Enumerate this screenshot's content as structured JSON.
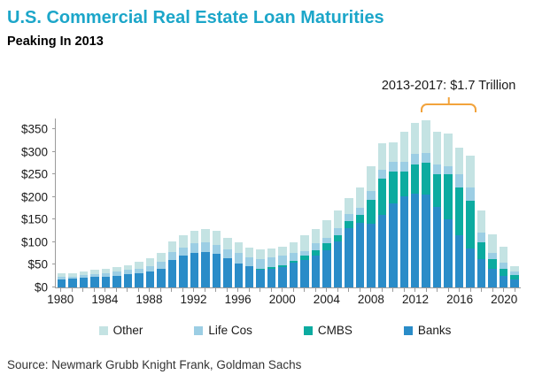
{
  "header": {
    "title": "U.S. Commercial Real Estate Loan Maturities",
    "subtitle": "Peaking In 2013"
  },
  "source": "Source: Newmark Grubb Knight Frank, Goldman Sachs",
  "colors": {
    "title": "#1ca6c9",
    "axis": "#9b9b9b",
    "bracket": "#F2A33C"
  },
  "chart_data": {
    "type": "bar",
    "stacked": true,
    "title": "U.S. Commercial Real Estate Loan Maturities",
    "subtitle": "Peaking In 2013",
    "xlabel": "",
    "ylabel": "",
    "ytick_prefix": "$",
    "yticks": [
      0,
      50,
      100,
      150,
      200,
      250,
      300,
      350
    ],
    "ymax": 374,
    "grid": false,
    "legend_position": "bottom",
    "years": [
      1980,
      1981,
      1982,
      1983,
      1984,
      1985,
      1986,
      1987,
      1988,
      1989,
      1990,
      1991,
      1992,
      1993,
      1994,
      1995,
      1996,
      1997,
      1998,
      1999,
      2000,
      2001,
      2002,
      2003,
      2004,
      2005,
      2006,
      2007,
      2008,
      2009,
      2010,
      2011,
      2012,
      2013,
      2014,
      2015,
      2016,
      2017,
      2018,
      2019,
      2020,
      2021
    ],
    "xtick_labels": [
      1980,
      1984,
      1988,
      1992,
      1996,
      2000,
      2004,
      2008,
      2012,
      2016,
      2020
    ],
    "series": [
      {
        "name": "Banks",
        "color": "#2a8cc8",
        "values": [
          18,
          19,
          21,
          23,
          24,
          26,
          29,
          31,
          35,
          42,
          60,
          70,
          77,
          79,
          75,
          65,
          52,
          47,
          39,
          42,
          46,
          54,
          60,
          70,
          82,
          102,
          131,
          142,
          141,
          160,
          186,
          202,
          208,
          206,
          179,
          150,
          115,
          86,
          63,
          41,
          26,
          18
        ]
      },
      {
        "name": "CMBS",
        "color": "#0caba0",
        "values": [
          0,
          0,
          0,
          0,
          0,
          0,
          0,
          0,
          0,
          0,
          0,
          0,
          0,
          0,
          0,
          0,
          0,
          0,
          2,
          3,
          3,
          5,
          11,
          12,
          15,
          13,
          16,
          19,
          52,
          80,
          71,
          55,
          65,
          71,
          71,
          100,
          106,
          106,
          36,
          22,
          15,
          10
        ]
      },
      {
        "name": "Life Cos",
        "color": "#9ccee4",
        "values": [
          5,
          5,
          6,
          7,
          8,
          9,
          10,
          11,
          13,
          15,
          18,
          19,
          20,
          20,
          20,
          20,
          24,
          20,
          22,
          21,
          22,
          18,
          10,
          15,
          13,
          16,
          16,
          15,
          20,
          20,
          22,
          22,
          22,
          21,
          22,
          19,
          29,
          29,
          22,
          13,
          14,
          7
        ]
      },
      {
        "name": "Other",
        "color": "#c4e3e3",
        "values": [
          8,
          8,
          9,
          9,
          10,
          10,
          11,
          14,
          17,
          19,
          24,
          26,
          29,
          30,
          31,
          25,
          24,
          22,
          21,
          20,
          19,
          22,
          34,
          33,
          38,
          40,
          34,
          46,
          55,
          59,
          43,
          66,
          69,
          73,
          73,
          71,
          60,
          71,
          49,
          42,
          35,
          12
        ]
      }
    ],
    "legend": [
      {
        "label": "Other",
        "color": "#c4e3e3"
      },
      {
        "label": "Life Cos",
        "color": "#9ccee4"
      },
      {
        "label": "CMBS",
        "color": "#0caba0"
      },
      {
        "label": "Banks",
        "color": "#2a8cc8"
      }
    ],
    "annotation": {
      "text": "2013-2017: $1.7 Trillion",
      "bracket_color": "#F2A33C",
      "start_year": 2013,
      "end_year": 2017
    }
  }
}
